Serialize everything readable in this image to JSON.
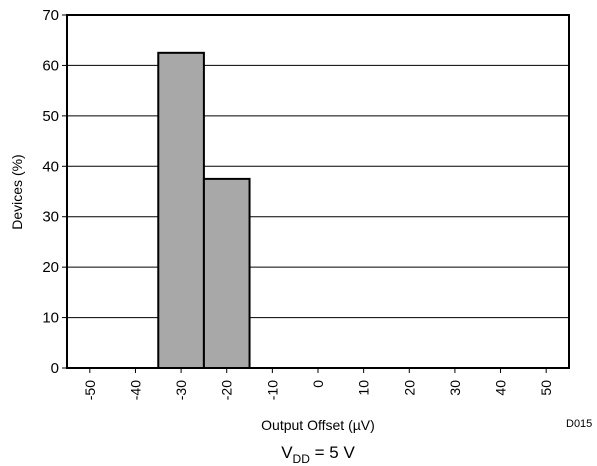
{
  "chart_data": {
    "type": "histogram",
    "bins": [
      -55,
      -45,
      -35,
      -25,
      -15,
      -5,
      5,
      15,
      25,
      35,
      45,
      55
    ],
    "values": [
      0,
      0,
      62.5,
      37.5,
      0,
      0,
      0,
      0,
      0,
      0,
      0
    ],
    "color": "#a8a8a8",
    "xlim": [
      -55,
      55
    ],
    "xticks": [
      -50,
      -40,
      -30,
      -20,
      -10,
      0,
      10,
      20,
      30,
      40,
      50
    ],
    "ylim": [
      0,
      70
    ],
    "yticks": [
      0,
      10,
      20,
      30,
      40,
      50,
      60,
      70
    ],
    "grid": true,
    "xlabel": "Output Offset (µV)",
    "ylabel": "Devices (%)",
    "caption": [
      "V",
      "DD",
      " = 5 V"
    ],
    "code": "D015"
  }
}
